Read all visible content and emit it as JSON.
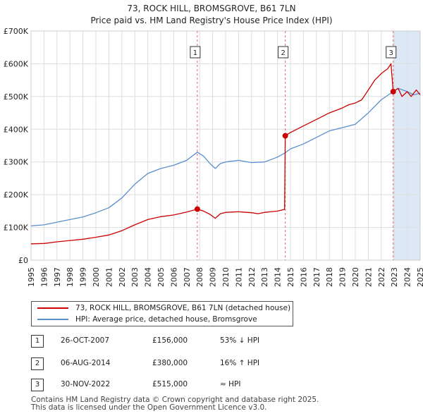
{
  "title": "73, ROCK HILL, BROMSGROVE, B61 7LN",
  "subtitle": "Price paid vs. HM Land Registry's House Price Index (HPI)",
  "colors": {
    "property": "#cc0000",
    "hpi": "#5b8fcc",
    "highlight": "#dce8f6",
    "grid": "#dddddd",
    "vline": "#dd6666"
  },
  "chart_data": {
    "type": "line",
    "title": "73, ROCK HILL, BROMSGROVE, B61 7LN",
    "subtitle": "Price paid vs. HM Land Registry's House Price Index (HPI)",
    "xlabel": "",
    "ylabel": "",
    "xlim": [
      1995,
      2025
    ],
    "ylim": [
      0,
      700000
    ],
    "grid": true,
    "y_ticks": [
      0,
      100000,
      200000,
      300000,
      400000,
      500000,
      600000,
      700000
    ],
    "y_tick_labels": [
      "£0",
      "£100K",
      "£200K",
      "£300K",
      "£400K",
      "£500K",
      "£600K",
      "£700K"
    ],
    "x_ticks": [
      1995,
      1996,
      1997,
      1998,
      1999,
      2000,
      2001,
      2002,
      2003,
      2004,
      2005,
      2006,
      2007,
      2008,
      2009,
      2010,
      2011,
      2012,
      2013,
      2014,
      2015,
      2016,
      2017,
      2018,
      2019,
      2020,
      2021,
      2022,
      2023,
      2024,
      2025
    ],
    "x_tick_labels": [
      "1995",
      "1996",
      "1997",
      "1998",
      "1999",
      "2000",
      "2001",
      "2002",
      "2003",
      "2004",
      "2005",
      "2006",
      "2007",
      "2008",
      "2009",
      "2010",
      "2011",
      "2012",
      "2013",
      "2014",
      "2015",
      "2016",
      "2017",
      "2018",
      "2019",
      "2020",
      "2021",
      "2022",
      "2023",
      "2024",
      "2025"
    ],
    "highlight_ranges": [
      [
        2022.92,
        2025
      ]
    ],
    "series": [
      {
        "name": "73, ROCK HILL, BROMSGROVE, B61 7LN (detached house)",
        "color": "#cc0000",
        "points": [
          [
            1995.0,
            50000
          ],
          [
            1996.0,
            51000
          ],
          [
            1997.0,
            56000
          ],
          [
            1998.0,
            60000
          ],
          [
            1999.0,
            64000
          ],
          [
            2000.0,
            70000
          ],
          [
            2001.0,
            77000
          ],
          [
            2002.0,
            90000
          ],
          [
            2003.0,
            108000
          ],
          [
            2004.0,
            124000
          ],
          [
            2005.0,
            133000
          ],
          [
            2006.0,
            138000
          ],
          [
            2007.0,
            147000
          ],
          [
            2007.82,
            156000
          ],
          [
            2008.3,
            150000
          ],
          [
            2008.8,
            140000
          ],
          [
            2009.2,
            128000
          ],
          [
            2009.6,
            142000
          ],
          [
            2010.0,
            146000
          ],
          [
            2011.0,
            148000
          ],
          [
            2012.0,
            145000
          ],
          [
            2012.5,
            142000
          ],
          [
            2013.0,
            146000
          ],
          [
            2014.0,
            150000
          ],
          [
            2014.55,
            155000
          ],
          [
            2014.6,
            380000
          ],
          [
            2015.0,
            390000
          ],
          [
            2016.0,
            410000
          ],
          [
            2017.0,
            430000
          ],
          [
            2018.0,
            450000
          ],
          [
            2019.0,
            465000
          ],
          [
            2019.5,
            475000
          ],
          [
            2020.0,
            480000
          ],
          [
            2020.5,
            490000
          ],
          [
            2021.0,
            520000
          ],
          [
            2021.5,
            550000
          ],
          [
            2022.0,
            570000
          ],
          [
            2022.5,
            585000
          ],
          [
            2022.75,
            600000
          ],
          [
            2022.92,
            515000
          ],
          [
            2023.3,
            525000
          ],
          [
            2023.6,
            500000
          ],
          [
            2024.0,
            515000
          ],
          [
            2024.3,
            500000
          ],
          [
            2024.7,
            520000
          ],
          [
            2025.0,
            505000
          ]
        ]
      },
      {
        "name": "HPI: Average price, detached house, Bromsgrove",
        "color": "#5b8fcc",
        "points": [
          [
            1995.0,
            105000
          ],
          [
            1996.0,
            108000
          ],
          [
            1997.0,
            116000
          ],
          [
            1998.0,
            124000
          ],
          [
            1999.0,
            132000
          ],
          [
            2000.0,
            145000
          ],
          [
            2001.0,
            160000
          ],
          [
            2002.0,
            190000
          ],
          [
            2003.0,
            232000
          ],
          [
            2004.0,
            265000
          ],
          [
            2005.0,
            280000
          ],
          [
            2006.0,
            290000
          ],
          [
            2007.0,
            305000
          ],
          [
            2007.82,
            330000
          ],
          [
            2008.3,
            318000
          ],
          [
            2008.8,
            295000
          ],
          [
            2009.2,
            280000
          ],
          [
            2009.6,
            295000
          ],
          [
            2010.0,
            300000
          ],
          [
            2011.0,
            305000
          ],
          [
            2012.0,
            298000
          ],
          [
            2013.0,
            300000
          ],
          [
            2014.0,
            315000
          ],
          [
            2014.6,
            328000
          ],
          [
            2015.0,
            340000
          ],
          [
            2016.0,
            355000
          ],
          [
            2017.0,
            375000
          ],
          [
            2018.0,
            395000
          ],
          [
            2019.0,
            405000
          ],
          [
            2020.0,
            415000
          ],
          [
            2021.0,
            450000
          ],
          [
            2022.0,
            490000
          ],
          [
            2022.92,
            515000
          ],
          [
            2023.3,
            525000
          ],
          [
            2024.0,
            515000
          ],
          [
            2024.5,
            505000
          ],
          [
            2025.0,
            510000
          ]
        ]
      }
    ],
    "sales": [
      {
        "id": "1",
        "x": 2007.82,
        "value": 156000,
        "date": "26-OCT-2007",
        "price": "£156,000",
        "relation": "53% ↓ HPI"
      },
      {
        "id": "2",
        "x": 2014.6,
        "value": 380000,
        "date": "06-AUG-2014",
        "price": "£380,000",
        "relation": "16% ↑ HPI"
      },
      {
        "id": "3",
        "x": 2022.92,
        "value": 515000,
        "date": "30-NOV-2022",
        "price": "£515,000",
        "relation": "≈ HPI"
      }
    ]
  },
  "legend": {
    "property_label": "73, ROCK HILL, BROMSGROVE, B61 7LN (detached house)",
    "hpi_label": "HPI: Average price, detached house, Bromsgrove"
  },
  "sales_table": [
    {
      "id": "1",
      "date": "26-OCT-2007",
      "price": "£156,000",
      "relation": "53% ↓ HPI"
    },
    {
      "id": "2",
      "date": "06-AUG-2014",
      "price": "£380,000",
      "relation": "16% ↑ HPI"
    },
    {
      "id": "3",
      "date": "30-NOV-2022",
      "price": "£515,000",
      "relation": "≈ HPI"
    }
  ],
  "footer": {
    "line1": "Contains HM Land Registry data © Crown copyright and database right 2025.",
    "line2": "This data is licensed under the Open Government Licence v3.0."
  }
}
